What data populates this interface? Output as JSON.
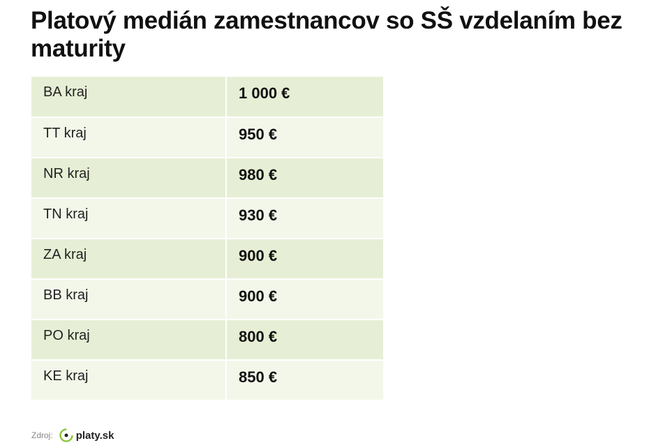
{
  "header": {
    "title": "Platový medián zamestnancov so SŠ vzdelaním bez maturity"
  },
  "table": {
    "rows": [
      [
        "BA kraj",
        "1 000 €"
      ],
      [
        "TT kraj",
        "950 €"
      ],
      [
        "NR kraj",
        "980 €"
      ],
      [
        "TN kraj",
        "930 €"
      ],
      [
        "ZA kraj",
        "900 €"
      ],
      [
        "BB kraj",
        "900 €"
      ],
      [
        "PO kraj",
        "800 €"
      ],
      [
        "KE kraj",
        "850 €"
      ]
    ]
  },
  "footer": {
    "source_label": "Zdroj:",
    "brand": "platy.sk"
  }
}
